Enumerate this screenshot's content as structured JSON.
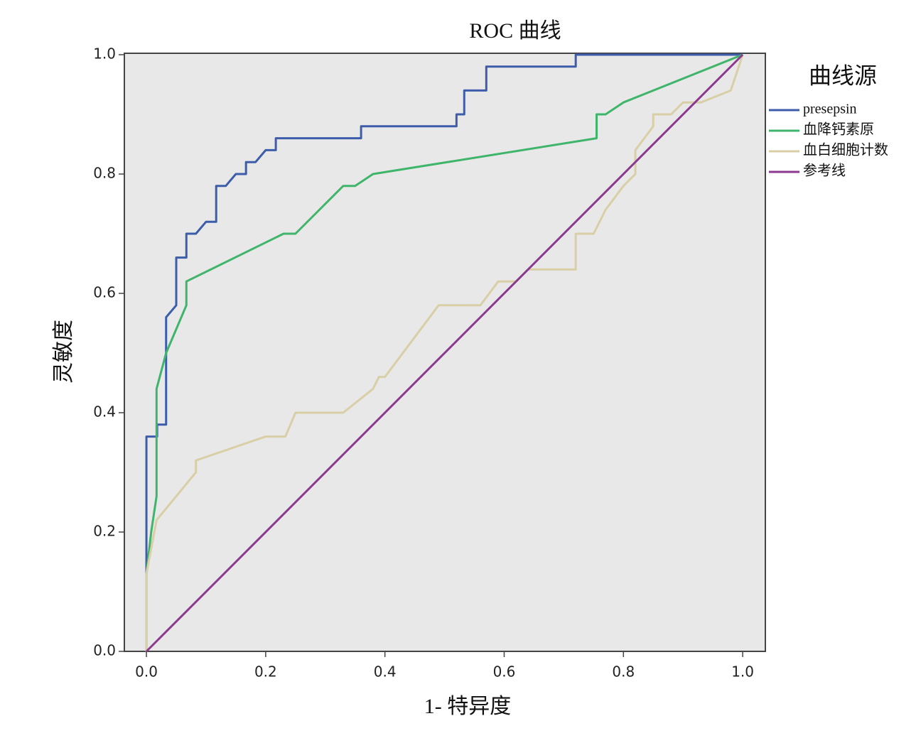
{
  "chart_data": {
    "type": "line",
    "title": "ROC 曲线",
    "xlabel": "1- 特异度",
    "ylabel": "灵敏度",
    "legend_title": "曲线源",
    "xlim": [
      -0.037,
      1.038
    ],
    "ylim": [
      0,
      1
    ],
    "xticks": [
      {
        "value": 0,
        "label": "0.0"
      },
      {
        "value": 0.2,
        "label": "0.2"
      },
      {
        "value": 0.4,
        "label": "0.4"
      },
      {
        "value": 0.6,
        "label": "0.6"
      },
      {
        "value": 0.8,
        "label": "0.8"
      },
      {
        "value": 1,
        "label": "1.0"
      }
    ],
    "yticks": [
      {
        "value": 0,
        "label": "0.0"
      },
      {
        "value": 0.2,
        "label": "0.2"
      },
      {
        "value": 0.4,
        "label": "0.4"
      },
      {
        "value": 0.6,
        "label": "0.6"
      },
      {
        "value": 0.8,
        "label": "0.8"
      },
      {
        "value": 1,
        "label": "1.0"
      }
    ],
    "legend_position": "right",
    "series": [
      {
        "name": "presepsin",
        "color": "#3d5dab",
        "x": [
          0,
          0,
          0.018,
          0.018,
          0.033,
          0.033,
          0.05,
          0.05,
          0.067,
          0.067,
          0.083,
          0.1,
          0.117,
          0.117,
          0.133,
          0.15,
          0.167,
          0.167,
          0.183,
          0.2,
          0.217,
          0.217,
          0.36,
          0.36,
          0.52,
          0.52,
          0.533,
          0.533,
          0.57,
          0.57,
          0.72,
          0.72,
          1
        ],
        "values": [
          0,
          0.36,
          0.36,
          0.38,
          0.38,
          0.56,
          0.58,
          0.66,
          0.66,
          0.7,
          0.7,
          0.72,
          0.72,
          0.78,
          0.78,
          0.8,
          0.8,
          0.82,
          0.82,
          0.84,
          0.84,
          0.86,
          0.86,
          0.88,
          0.88,
          0.9,
          0.9,
          0.94,
          0.94,
          0.98,
          0.98,
          1,
          1
        ]
      },
      {
        "name": "血降钙素原",
        "color": "#3fb56b",
        "x": [
          0,
          0,
          0.008,
          0.017,
          0.017,
          0.033,
          0.067,
          0.067,
          0.23,
          0.25,
          0.33,
          0.35,
          0.38,
          0.755,
          0.755,
          0.77,
          0.8,
          1
        ],
        "values": [
          0,
          0.13,
          0.2,
          0.26,
          0.44,
          0.5,
          0.58,
          0.62,
          0.7,
          0.7,
          0.78,
          0.78,
          0.8,
          0.86,
          0.9,
          0.9,
          0.92,
          1
        ]
      },
      {
        "name": "血白细胞计数",
        "color": "#d8cfa6",
        "x": [
          0,
          0,
          0.017,
          0.083,
          0.083,
          0.2,
          0.233,
          0.25,
          0.33,
          0.38,
          0.39,
          0.4,
          0.49,
          0.56,
          0.59,
          0.62,
          0.64,
          0.72,
          0.72,
          0.75,
          0.77,
          0.8,
          0.82,
          0.82,
          0.85,
          0.85,
          0.88,
          0.9,
          0.93,
          0.98,
          1
        ],
        "values": [
          0,
          0.13,
          0.22,
          0.3,
          0.32,
          0.36,
          0.36,
          0.4,
          0.4,
          0.44,
          0.46,
          0.46,
          0.58,
          0.58,
          0.62,
          0.62,
          0.64,
          0.64,
          0.7,
          0.7,
          0.74,
          0.78,
          0.8,
          0.84,
          0.88,
          0.9,
          0.9,
          0.92,
          0.92,
          0.94,
          1
        ]
      },
      {
        "name": "参考线",
        "color": "#8b3a8f",
        "x": [
          0,
          1
        ],
        "values": [
          0,
          1
        ]
      }
    ]
  }
}
